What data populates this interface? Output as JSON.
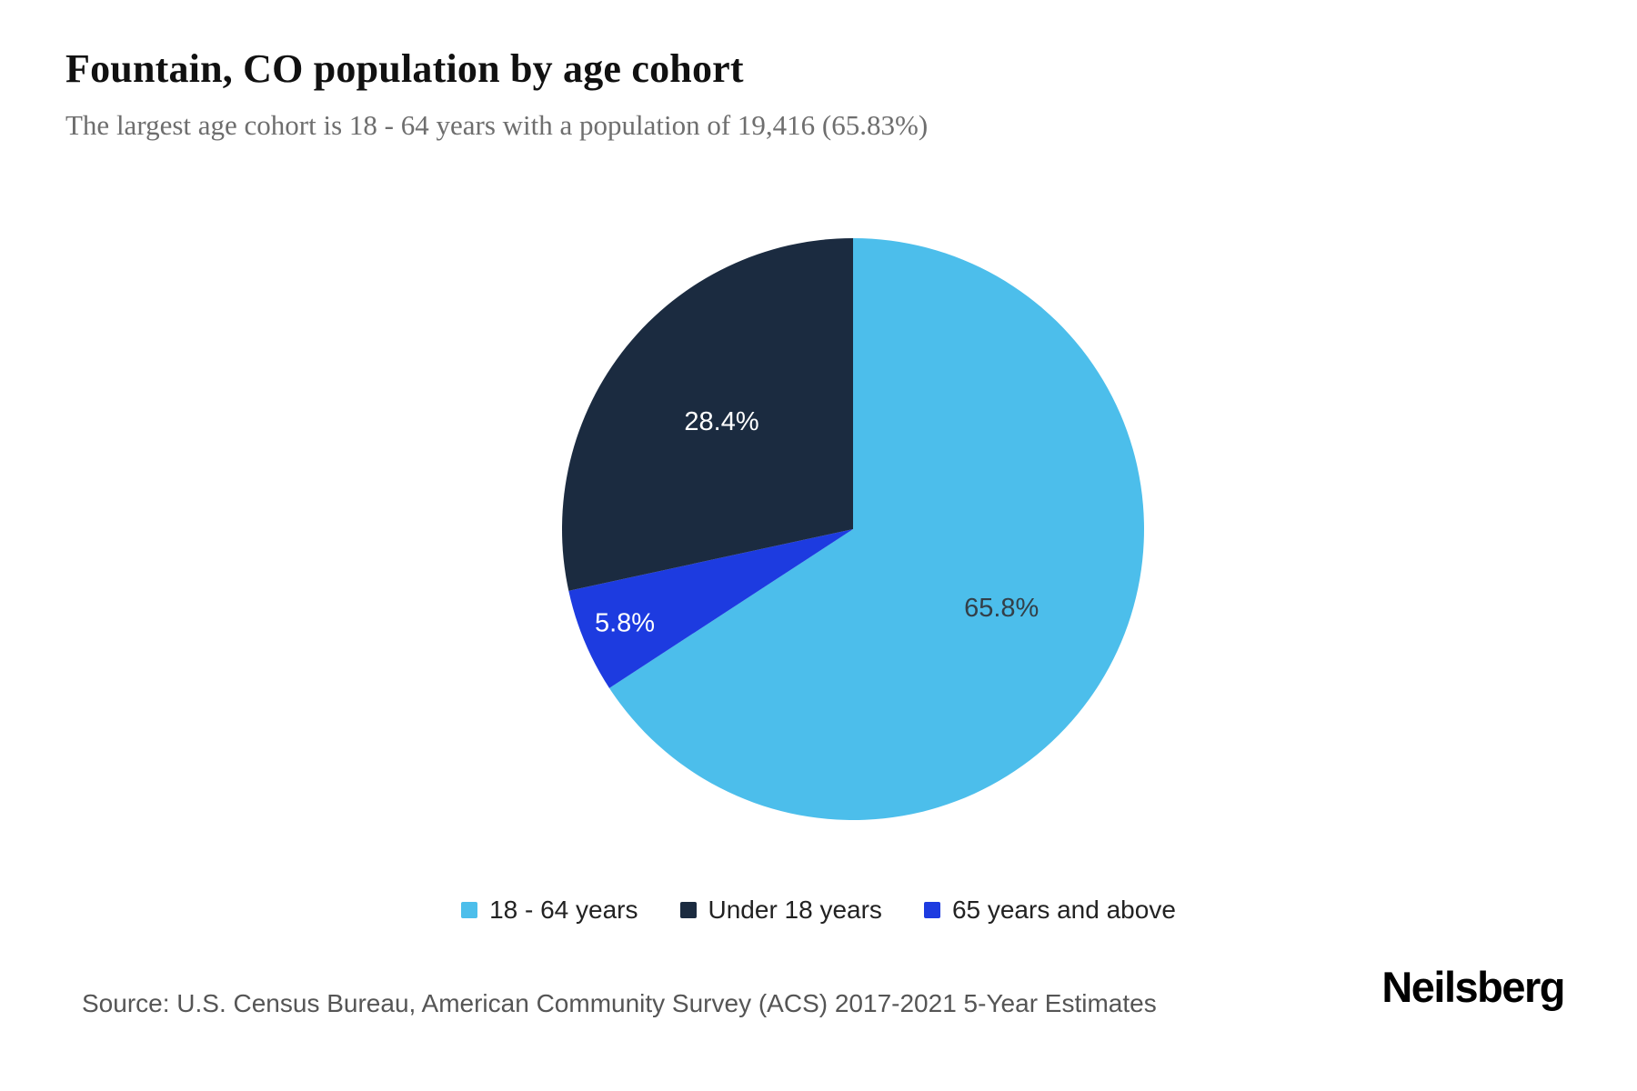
{
  "header": {
    "title": "Fountain, CO population by age cohort",
    "subtitle": "The largest age cohort is 18 - 64 years with a population of 19,416 (65.83%)"
  },
  "chart_data": {
    "type": "pie",
    "title": "Fountain, CO population by age cohort",
    "unit": "percent",
    "start_angle_deg": 0,
    "direction": "clockwise",
    "legend_position": "bottom",
    "draw_order": [
      0,
      2,
      1
    ],
    "slices": [
      {
        "label": "18 - 64 years",
        "value": 65.8,
        "display": "65.8%",
        "color": "#4CBEEB",
        "label_color": "#333F48"
      },
      {
        "label": "Under 18 years",
        "value": 28.4,
        "display": "28.4%",
        "color": "#1B2B40",
        "label_color": "#FFFFFF"
      },
      {
        "label": "65 years and above",
        "value": 5.8,
        "display": "5.8%",
        "color": "#1D3BE0",
        "label_color": "#FFFFFF"
      }
    ]
  },
  "footer": {
    "source": "Source: U.S. Census Bureau, American Community Survey (ACS) 2017-2021 5-Year Estimates",
    "brand": "Neilsberg"
  }
}
